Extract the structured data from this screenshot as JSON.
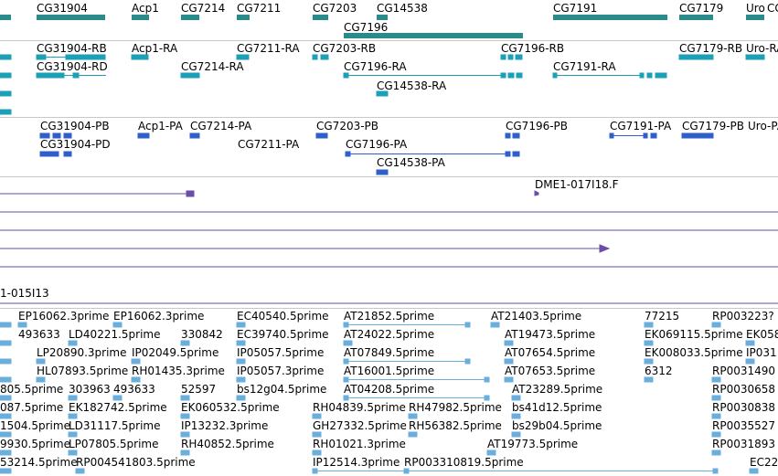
{
  "colors": {
    "gene": "#2b8b8b",
    "transcript": "#1ba0b8",
    "protein": "#2f5fc8",
    "clone": "#6a4ea8",
    "est": "#6aaedc",
    "separator": "#c8c8c8"
  },
  "tracks": {
    "genes": {
      "labels": [
        "CG31904",
        "Acp1",
        "CG7214",
        "CG7211",
        "CG7203",
        "CG14538",
        "CG7196",
        "CG7191",
        "CG7179",
        "Uro",
        "CG"
      ]
    },
    "transcripts": {
      "labels": [
        "CG31904-RB",
        "Acp1-RA",
        "CG7211-RA",
        "CG7203-RB",
        "CG7196-RB",
        "CG7179-RB",
        "Uro-RA",
        "CG31904-RD",
        "CG7214-RA",
        "CG7196-RA",
        "CG7191-RA",
        "CG14538-RA"
      ]
    },
    "proteins": {
      "labels": [
        "CG31904-PB",
        "Acp1-PA",
        "CG7214-PA",
        "CG7203-PB",
        "CG7196-PB",
        "CG7191-PA",
        "CG7179-PB",
        "Uro-PA",
        "CG31904-PD",
        "CG7211-PA",
        "CG7196-PA",
        "CG14538-PA"
      ]
    },
    "clones": {
      "labels": [
        "DME1-017I18.F",
        "1-015I13"
      ]
    },
    "ests": {
      "labels": [
        "EP16062.3prime",
        "EP16062.3prime",
        "EC40540.5prime",
        "AT21852.5prime",
        "AT21403.5prime",
        "77215",
        "RP003223?",
        "493633",
        "LD40221.5prime",
        "330842",
        "EC39740.5prime",
        "AT24022.5prime",
        "AT19473.5prime",
        "EK069115.5prime",
        "EK058",
        "LP20890.3prime",
        "IP02049.5prime",
        "IP05057.5prime",
        "AT07849.5prime",
        "AT07654.5prime",
        "EK008033.5prime",
        "IP031",
        "HL07893.5prime",
        "RH01435.3prime",
        "IP05057.3prime",
        "AT16001.5prime",
        "AT07653.5prime",
        "6312",
        "RP0031490",
        "805.5prime",
        "303963",
        "493633",
        "52597",
        "bs12g04.5prime",
        "AT04208.5prime",
        "AT23289.5prime",
        "RP0030658",
        "087.5prime",
        "EK182742.5prime",
        "EK060532.5prime",
        "RH04839.5prime",
        "RH47982.5prime",
        "bs41d12.5prime",
        "RP0030838",
        "1504.5prime",
        "LD31117.5prime",
        "IP13232.3prime",
        "GH27332.5prime",
        "RH56382.5prime",
        "bs29b04.5prime",
        "RP0035527",
        "9930.5prime",
        "LP07805.5prime",
        "RH40852.5prime",
        "RH01021.3prime",
        "AT19773.5prime",
        "RP0031893",
        "53214.5prime",
        "RP004541803.5prime",
        "IP12514.3prime",
        "RP003310819.5prime",
        "EC22"
      ]
    }
  }
}
